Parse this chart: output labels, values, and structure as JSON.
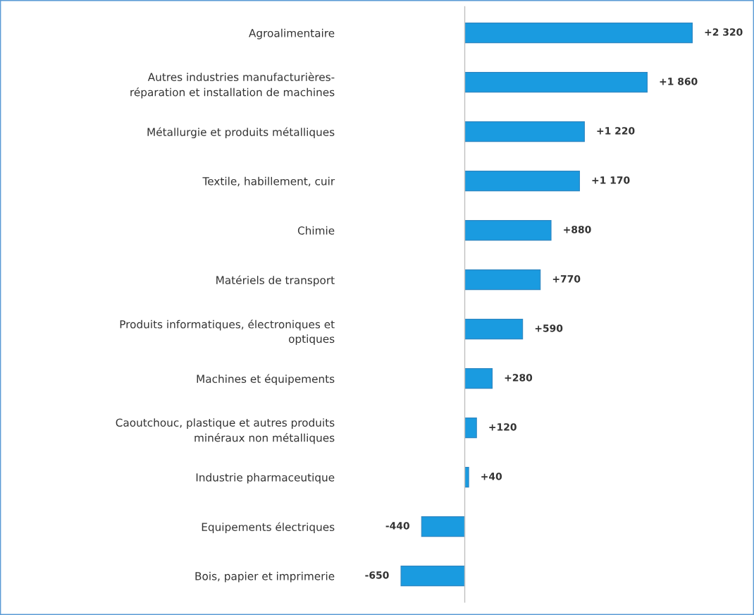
{
  "chart_data": {
    "type": "bar",
    "orientation": "horizontal",
    "categories": [
      "Agroalimentaire",
      "Autres industries manufacturières-\nréparation et installation de machines",
      "Métallurgie et produits métalliques",
      "Textile, habillement, cuir",
      "Chimie",
      "Matériels de transport",
      "Produits informatiques, électroniques et\noptiques",
      "Machines et équipements",
      "Caoutchouc, plastique et autres produits\nminéraux non métalliques",
      "Industrie pharmaceutique",
      "Equipements électriques",
      "Bois, papier et imprimerie"
    ],
    "values": [
      2320,
      1860,
      1220,
      1170,
      880,
      770,
      590,
      280,
      120,
      40,
      -440,
      -650
    ],
    "value_labels": [
      "+2 320",
      "+1 860",
      "+1 220",
      "+1 170",
      "+880",
      "+770",
      "+590",
      "+280",
      "+120",
      "+40",
      "-440",
      "-650"
    ],
    "color": "#1a9be0",
    "tick_labels": "y",
    "grid": false,
    "legend": false
  }
}
